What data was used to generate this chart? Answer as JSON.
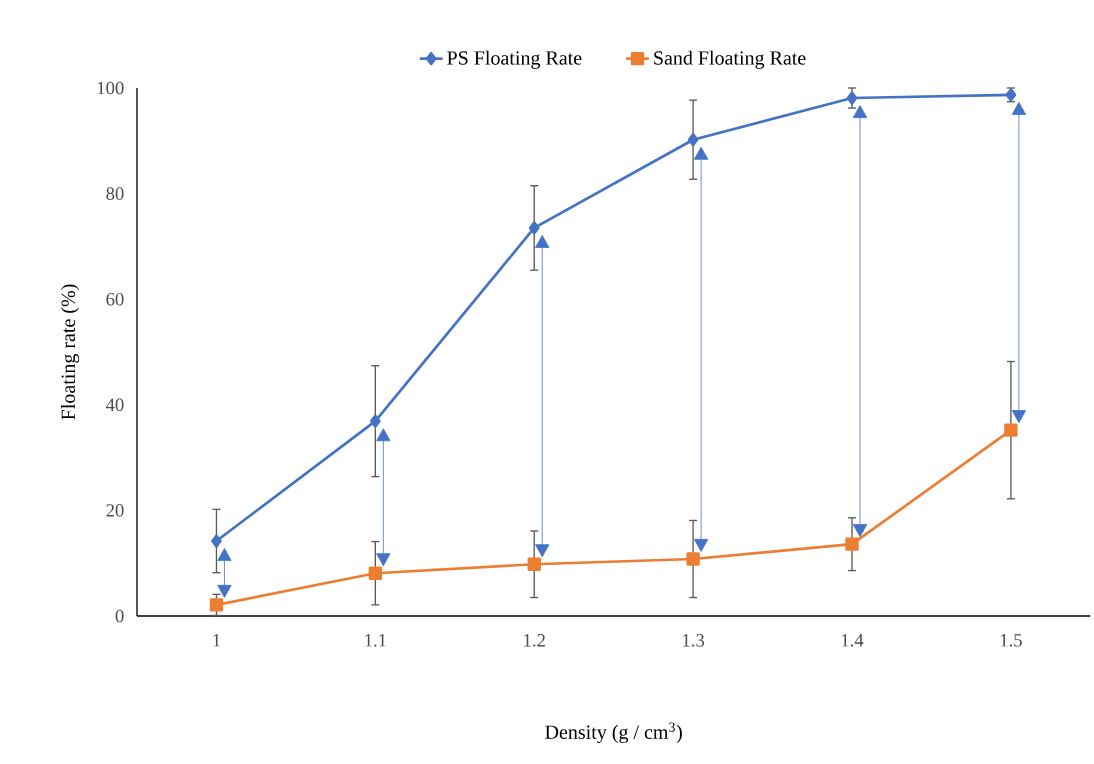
{
  "chart_data": {
    "type": "line",
    "xlabel": "Density (g / cm$^{3}$)",
    "ylabel": "Floating rate (%)",
    "categories": [
      "1",
      "1.1",
      "1.2",
      "1.3",
      "1.4",
      "1.5"
    ],
    "ylim": [
      0,
      100
    ],
    "yticks": [
      0,
      20,
      40,
      60,
      80,
      100
    ],
    "grid": false,
    "legend": "top",
    "series": [
      {
        "name": "PS Floating Rate",
        "color": "#4472c4",
        "marker": "diamond",
        "values": [
          14.2,
          36.9,
          73.5,
          90.2,
          98.1,
          98.7
        ],
        "errors": [
          6,
          10.5,
          8,
          7.5,
          1.9,
          1.3
        ]
      },
      {
        "name": "Sand Floating Rate",
        "color": "#ed7d31",
        "marker": "square",
        "values": [
          2.1,
          8.1,
          9.8,
          10.8,
          13.6,
          35.2
        ],
        "errors": [
          2,
          6,
          6.3,
          7.3,
          5,
          13
        ]
      }
    ]
  }
}
